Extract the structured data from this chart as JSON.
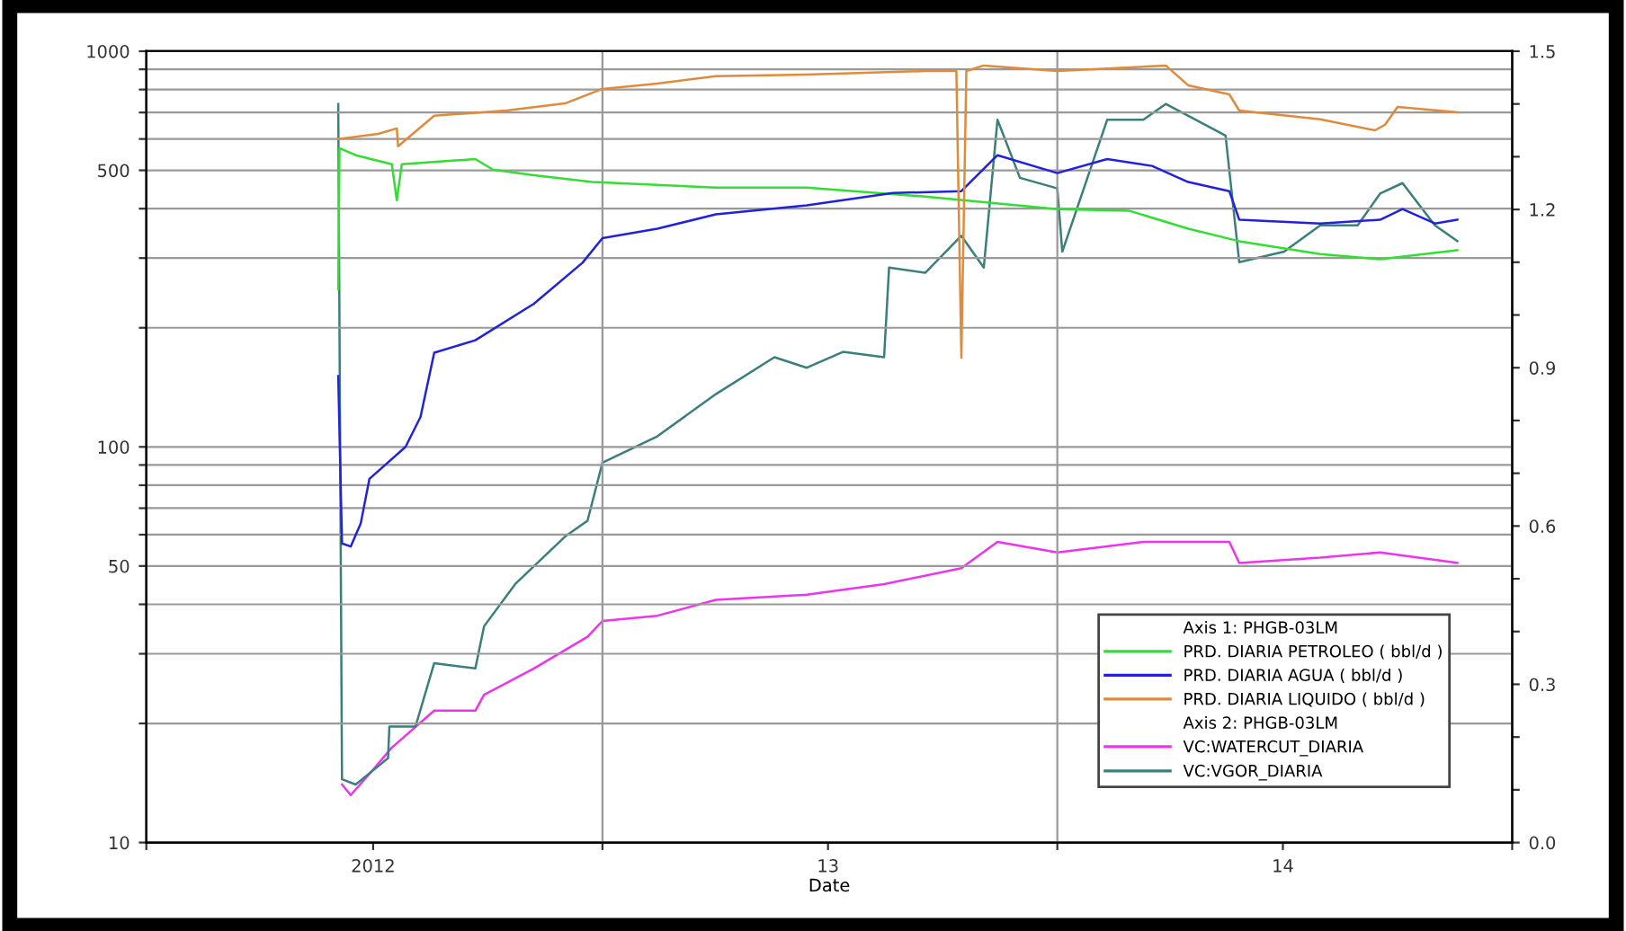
{
  "chart_data": {
    "type": "line",
    "xlabel": "Date",
    "x": [
      "2012-06-03",
      "2012-07-05",
      "2012-07-20",
      "2012-07-21",
      "2012-08-19",
      "2012-10-16",
      "2012-12-02",
      "2013-01-01",
      "2013-02-14",
      "2013-04-02",
      "2013-06-14",
      "2013-09-17",
      "2013-10-12",
      "2013-10-16",
      "2013-10-20",
      "2013-11-03",
      "2014-01-01",
      "2014-03-29",
      "2014-04-16",
      "2014-05-19",
      "2014-05-27",
      "2014-07-31",
      "2014-09-13",
      "2014-09-21",
      "2014-10-01",
      "2014-11-18"
    ],
    "series": [
      {
        "name": "PRD. DIARIA PETROLEO ( bbl/d )",
        "color": "#33dd33",
        "x": [
          "2012-06-03",
          "2012-06-04",
          "2012-06-17",
          "2012-07-16",
          "2012-07-20",
          "2012-07-24",
          "2012-09-21",
          "2012-10-05",
          "2012-11-07",
          "2012-12-24",
          "2013-04-02",
          "2013-06-14",
          "2013-09-17",
          "2014-01-01",
          "2014-02-28",
          "2014-04-16",
          "2014-05-27",
          "2014-07-31",
          "2014-09-17",
          "2014-11-18"
        ],
        "values": [
          250,
          569,
          546,
          518,
          420,
          518,
          534,
          502,
          486,
          467,
          452,
          452,
          429,
          399,
          395,
          356,
          331,
          307,
          298,
          314
        ]
      },
      {
        "name": "PRD. DIARIA AGUA ( bbl/d )",
        "color": "#2222dd",
        "x": [
          "2012-06-03",
          "2012-06-06",
          "2012-06-13",
          "2012-06-21",
          "2012-06-28",
          "2012-07-27",
          "2012-08-08",
          "2012-08-19",
          "2012-09-21",
          "2012-11-07",
          "2012-12-16",
          "2013-01-01",
          "2013-02-14",
          "2013-04-02",
          "2013-06-14",
          "2013-08-22",
          "2013-10-16",
          "2013-11-14",
          "2014-01-01",
          "2014-02-10",
          "2014-03-18",
          "2014-04-16",
          "2014-05-19",
          "2014-05-27",
          "2014-07-31",
          "2014-09-17",
          "2014-10-05",
          "2014-10-31",
          "2014-11-18"
        ],
        "values": [
          151,
          57,
          56,
          64,
          83,
          100,
          119,
          173,
          186,
          230,
          292,
          337,
          356,
          387,
          408,
          438,
          443,
          546,
          492,
          534,
          513,
          467,
          443,
          375,
          367,
          375,
          399,
          367,
          375
        ]
      },
      {
        "name": "PRD. DIARIA LIQUIDO ( bbl/d )",
        "color": "#e08a3c",
        "values": [
          600,
          618,
          638,
          575,
          687,
          708,
          738,
          803,
          828,
          865,
          873,
          891,
          891,
          168,
          891,
          920,
          891,
          920,
          820,
          778,
          708,
          673,
          631,
          652,
          723,
          701
        ]
      },
      {
        "name": "VC:WATERCUT_DIARIA",
        "color": "#ee33ee",
        "axis": "y2",
        "x": [
          "2012-06-06",
          "2012-06-13",
          "2012-06-28",
          "2012-07-16",
          "2012-08-19",
          "2012-09-21",
          "2012-09-28",
          "2012-11-07",
          "2012-12-20",
          "2013-01-01",
          "2013-02-14",
          "2013-04-02",
          "2013-06-14",
          "2013-08-15",
          "2013-10-16",
          "2013-11-14",
          "2014-01-01",
          "2014-03-11",
          "2014-05-19",
          "2014-05-27",
          "2014-07-31",
          "2014-09-17",
          "2014-11-18"
        ],
        "values": [
          0.11,
          0.09,
          0.13,
          0.18,
          0.25,
          0.25,
          0.28,
          0.33,
          0.39,
          0.42,
          0.43,
          0.46,
          0.47,
          0.49,
          0.52,
          0.57,
          0.55,
          0.57,
          0.57,
          0.53,
          0.54,
          0.55,
          0.53
        ]
      },
      {
        "name": "VC:VGOR_DIARIA",
        "color": "#3a7f7a",
        "axis": "y2",
        "x": [
          "2012-06-03",
          "2012-06-06",
          "2012-06-17",
          "2012-07-13",
          "2012-07-14",
          "2012-08-04",
          "2012-08-19",
          "2012-09-21",
          "2012-09-28",
          "2012-10-23",
          "2012-12-02",
          "2012-12-20",
          "2013-01-01",
          "2013-02-14",
          "2013-04-02",
          "2013-05-19",
          "2013-06-14",
          "2013-07-13",
          "2013-08-15",
          "2013-08-19",
          "2013-09-17",
          "2013-10-16",
          "2013-11-03",
          "2013-11-14",
          "2013-12-02",
          "2014-01-01",
          "2014-01-05",
          "2014-02-10",
          "2014-03-11",
          "2014-03-29",
          "2014-05-16",
          "2014-05-27",
          "2014-07-02",
          "2014-07-31",
          "2014-08-30",
          "2014-09-17",
          "2014-10-05",
          "2014-10-31",
          "2014-11-18"
        ],
        "values": [
          1.4,
          0.12,
          0.11,
          0.16,
          0.22,
          0.22,
          0.34,
          0.33,
          0.41,
          0.49,
          0.58,
          0.61,
          0.72,
          0.77,
          0.85,
          0.92,
          0.9,
          0.93,
          0.92,
          1.09,
          1.08,
          1.15,
          1.09,
          1.37,
          1.26,
          1.24,
          1.12,
          1.37,
          1.37,
          1.4,
          1.34,
          1.1,
          1.12,
          1.17,
          1.17,
          1.23,
          1.25,
          1.17,
          1.14
        ]
      }
    ],
    "annotations": [
      "Axis 1: PHGB-03LM",
      "Axis 2: PHGB-03LM"
    ],
    "log": "y",
    "xlim": [
      "2012-01-01",
      "2015-01-01"
    ],
    "xticks": [
      {
        "value": "2012-01-01",
        "label": null
      },
      {
        "value": "2012-07-01",
        "label": "2012"
      },
      {
        "value": "2013-01-01",
        "label": null
      },
      {
        "value": "2013-07-01",
        "label": "13"
      },
      {
        "value": "2014-01-01",
        "label": null
      },
      {
        "value": "2014-07-01",
        "label": "14"
      },
      {
        "value": "2015-01-01",
        "label": null
      }
    ],
    "ylim": [
      10,
      1000
    ],
    "yticks": [
      10,
      {
        "value": 20,
        "label": null
      },
      {
        "value": 30,
        "label": null
      },
      {
        "value": 40,
        "label": null
      },
      50,
      {
        "value": 60,
        "label": null
      },
      {
        "value": 70,
        "label": null
      },
      {
        "value": 80,
        "label": null
      },
      {
        "value": 90,
        "label": null
      },
      100,
      {
        "value": 200,
        "label": null
      },
      {
        "value": 300,
        "label": null
      },
      {
        "value": 400,
        "label": null
      },
      500,
      {
        "value": 600,
        "label": null
      },
      {
        "value": 700,
        "label": null
      },
      {
        "value": 800,
        "label": null
      },
      {
        "value": 900,
        "label": null
      },
      1000
    ],
    "y2lim": [
      0.0,
      1.5
    ],
    "y2ticks": [
      {
        "value": 0.0,
        "label": "0.0"
      },
      {
        "value": 0.1,
        "label": null
      },
      {
        "value": 0.2,
        "label": null
      },
      {
        "value": 0.3,
        "label": "0.3"
      },
      {
        "value": 0.4,
        "label": null
      },
      {
        "value": 0.5,
        "label": null
      },
      {
        "value": 0.6,
        "label": "0.6"
      },
      {
        "value": 0.7,
        "label": null
      },
      {
        "value": 0.8,
        "label": null
      },
      {
        "value": 0.9,
        "label": "0.9"
      },
      {
        "value": 1.0,
        "label": null
      },
      {
        "value": 1.1,
        "label": null
      },
      {
        "value": 1.2,
        "label": "1.2"
      },
      {
        "value": 1.3,
        "label": null
      },
      {
        "value": 1.4,
        "label": null
      },
      {
        "value": 1.5,
        "label": "1.5"
      }
    ],
    "grid": true,
    "legend": "bottom right",
    "line_style": "solid",
    "marker": "none"
  }
}
